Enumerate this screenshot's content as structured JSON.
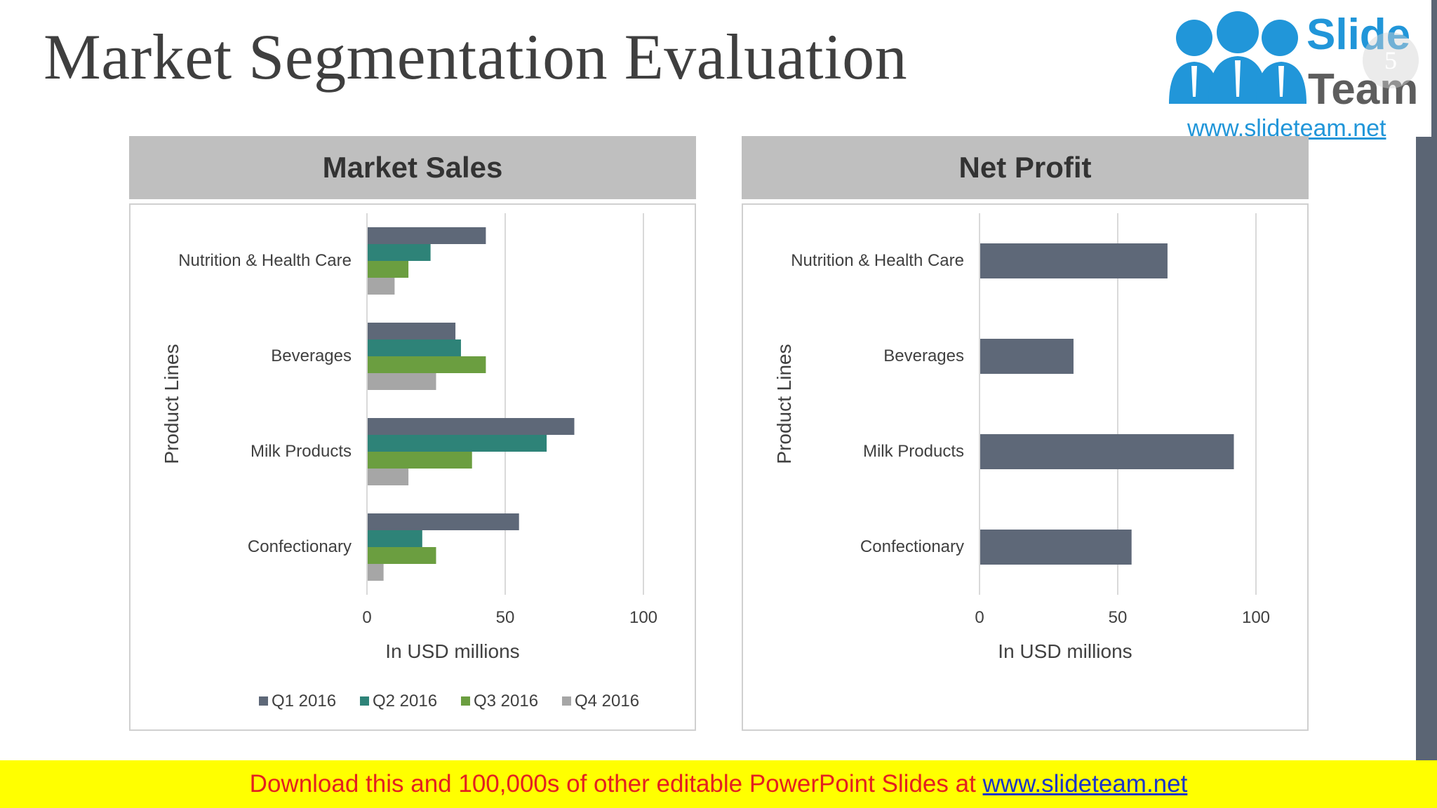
{
  "slide": {
    "title": "Market Segmentation Evaluation",
    "page_number": "5"
  },
  "logo": {
    "word1": "Slide",
    "word2": "Team",
    "url": "www.slideteam.net"
  },
  "banner": {
    "text": "Download this and 100,000s of other editable PowerPoint Slides at",
    "link": "www.slideteam.net"
  },
  "colors": {
    "q1": "#5e6878",
    "q2": "#2e8378",
    "q3": "#6b9e40",
    "q4": "#a6a6a6",
    "net_profit": "#5e6878",
    "header_bg": "#bfbfbf",
    "banner_bg": "#ffff00",
    "banner_text": "#e32020",
    "banner_link": "#1a35c9"
  },
  "chart_data": [
    {
      "type": "bar",
      "orientation": "horizontal",
      "title": "Market Sales",
      "categories": [
        "Nutrition & Health Care",
        "Beverages",
        "Milk Products",
        "Confectionary"
      ],
      "series": [
        {
          "name": "Q1 2016",
          "values": [
            43,
            32,
            75,
            55
          ]
        },
        {
          "name": "Q2 2016",
          "values": [
            23,
            34,
            65,
            20
          ]
        },
        {
          "name": "Q3 2016",
          "values": [
            15,
            43,
            38,
            25
          ]
        },
        {
          "name": "Q4 2016",
          "values": [
            10,
            25,
            15,
            6
          ]
        }
      ],
      "xlabel": "In USD millions",
      "ylabel": "Product Lines",
      "xlim": [
        0,
        100
      ],
      "xticks": [
        "0",
        "50",
        "100"
      ],
      "grid": "vertical",
      "legend": "bottom"
    },
    {
      "type": "bar",
      "orientation": "horizontal",
      "title": "Net Profit",
      "categories": [
        "Nutrition & Health Care",
        "Beverages",
        "Milk Products",
        "Confectionary"
      ],
      "series": [
        {
          "values": [
            68,
            34,
            92,
            55
          ]
        }
      ],
      "xlabel": "In USD millions",
      "ylabel": "Product Lines",
      "xlim": [
        0,
        100
      ],
      "xticks": [
        "0",
        "50",
        "100"
      ],
      "grid": "vertical",
      "legend": "none"
    }
  ]
}
